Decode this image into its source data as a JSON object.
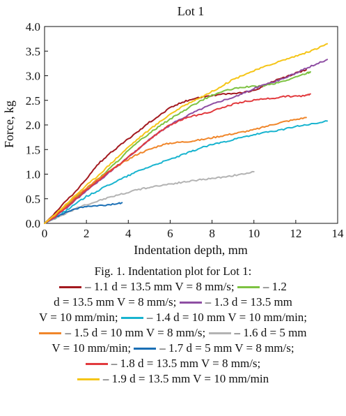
{
  "chart_data": {
    "type": "line",
    "title": "Lot 1",
    "xlabel": "Indentation depth, mm",
    "ylabel": "Force, kg",
    "xlim": [
      0,
      14
    ],
    "ylim": [
      0,
      4.0
    ],
    "x_ticks": [
      "0",
      "2",
      "4",
      "6",
      "8",
      "10",
      "12",
      "14"
    ],
    "y_ticks": [
      "0.0",
      "0.5",
      "1.0",
      "1.5",
      "2.0",
      "2.5",
      "3.0",
      "3.5",
      "4.0"
    ],
    "grid": false,
    "series": [
      {
        "name": "1.1",
        "color": "#a3191f",
        "points": [
          [
            0,
            0
          ],
          [
            0.5,
            0.2
          ],
          [
            1,
            0.45
          ],
          [
            1.5,
            0.65
          ],
          [
            2,
            0.9
          ],
          [
            2.5,
            1.18
          ],
          [
            3,
            1.38
          ],
          [
            3.5,
            1.55
          ],
          [
            4,
            1.72
          ],
          [
            4.5,
            1.88
          ],
          [
            5,
            2.05
          ],
          [
            5.5,
            2.2
          ],
          [
            6,
            2.35
          ],
          [
            6.5,
            2.45
          ],
          [
            7,
            2.52
          ],
          [
            7.5,
            2.57
          ],
          [
            8,
            2.6
          ],
          [
            8.5,
            2.62
          ],
          [
            9,
            2.64
          ],
          [
            9.5,
            2.66
          ],
          [
            10,
            2.7
          ],
          [
            10.5,
            2.8
          ],
          [
            11,
            2.9
          ],
          [
            11.5,
            2.97
          ],
          [
            12,
            3.05
          ],
          [
            12.5,
            3.12
          ]
        ]
      },
      {
        "name": "1.2",
        "color": "#7dc242",
        "points": [
          [
            0,
            0
          ],
          [
            0.5,
            0.15
          ],
          [
            1,
            0.35
          ],
          [
            1.5,
            0.52
          ],
          [
            2,
            0.7
          ],
          [
            2.5,
            0.88
          ],
          [
            3,
            1.07
          ],
          [
            3.5,
            1.27
          ],
          [
            4,
            1.48
          ],
          [
            4.5,
            1.66
          ],
          [
            5,
            1.83
          ],
          [
            5.5,
            1.98
          ],
          [
            6,
            2.12
          ],
          [
            6.5,
            2.25
          ],
          [
            7,
            2.38
          ],
          [
            7.5,
            2.5
          ],
          [
            8,
            2.6
          ],
          [
            8.5,
            2.68
          ],
          [
            9,
            2.73
          ],
          [
            9.5,
            2.77
          ],
          [
            10,
            2.78
          ],
          [
            10.5,
            2.8
          ],
          [
            11,
            2.84
          ],
          [
            11.5,
            2.9
          ],
          [
            12,
            2.97
          ],
          [
            12.5,
            3.05
          ],
          [
            12.7,
            3.08
          ]
        ]
      },
      {
        "name": "1.3",
        "color": "#8e4ea3",
        "points": [
          [
            0,
            0
          ],
          [
            0.5,
            0.12
          ],
          [
            1,
            0.3
          ],
          [
            1.5,
            0.48
          ],
          [
            2,
            0.66
          ],
          [
            2.5,
            0.83
          ],
          [
            3,
            1.0
          ],
          [
            3.5,
            1.17
          ],
          [
            4,
            1.35
          ],
          [
            4.5,
            1.52
          ],
          [
            5,
            1.7
          ],
          [
            5.5,
            1.86
          ],
          [
            6,
            2.0
          ],
          [
            6.5,
            2.12
          ],
          [
            7,
            2.23
          ],
          [
            7.5,
            2.33
          ],
          [
            8,
            2.42
          ],
          [
            8.5,
            2.5
          ],
          [
            9,
            2.56
          ],
          [
            9.5,
            2.64
          ],
          [
            10,
            2.74
          ],
          [
            10.5,
            2.82
          ],
          [
            11,
            2.88
          ],
          [
            11.5,
            2.96
          ],
          [
            12,
            3.05
          ],
          [
            12.5,
            3.15
          ],
          [
            13,
            3.24
          ],
          [
            13.5,
            3.33
          ]
        ]
      },
      {
        "name": "1.4",
        "color": "#19b4cf",
        "points": [
          [
            0,
            0
          ],
          [
            0.5,
            0.1
          ],
          [
            1,
            0.25
          ],
          [
            1.5,
            0.4
          ],
          [
            2,
            0.55
          ],
          [
            2.5,
            0.65
          ],
          [
            3,
            0.77
          ],
          [
            3.5,
            0.87
          ],
          [
            4,
            0.97
          ],
          [
            4.5,
            1.07
          ],
          [
            5,
            1.15
          ],
          [
            5.5,
            1.23
          ],
          [
            6,
            1.3
          ],
          [
            6.5,
            1.38
          ],
          [
            7,
            1.46
          ],
          [
            7.5,
            1.54
          ],
          [
            8,
            1.6
          ],
          [
            8.5,
            1.65
          ],
          [
            9,
            1.7
          ],
          [
            9.5,
            1.75
          ],
          [
            10,
            1.8
          ],
          [
            10.5,
            1.84
          ],
          [
            11,
            1.88
          ],
          [
            11.5,
            1.92
          ],
          [
            12,
            1.97
          ],
          [
            12.5,
            2.0
          ],
          [
            13,
            2.03
          ],
          [
            13.5,
            2.08
          ]
        ]
      },
      {
        "name": "1.5",
        "color": "#f0862a",
        "points": [
          [
            0,
            0
          ],
          [
            0.5,
            0.15
          ],
          [
            1,
            0.35
          ],
          [
            1.5,
            0.55
          ],
          [
            2,
            0.72
          ],
          [
            2.5,
            0.88
          ],
          [
            3,
            1.03
          ],
          [
            3.5,
            1.17
          ],
          [
            4,
            1.3
          ],
          [
            4.5,
            1.42
          ],
          [
            5,
            1.5
          ],
          [
            5.5,
            1.58
          ],
          [
            6,
            1.63
          ],
          [
            6.5,
            1.65
          ],
          [
            7,
            1.67
          ],
          [
            7.5,
            1.7
          ],
          [
            8,
            1.74
          ],
          [
            8.5,
            1.78
          ],
          [
            9,
            1.82
          ],
          [
            9.5,
            1.86
          ],
          [
            10,
            1.9
          ],
          [
            10.5,
            1.96
          ],
          [
            11,
            2.02
          ],
          [
            11.5,
            2.07
          ],
          [
            12,
            2.11
          ],
          [
            12.5,
            2.15
          ]
        ]
      },
      {
        "name": "1.6",
        "color": "#b3b3b3",
        "points": [
          [
            0,
            0
          ],
          [
            0.5,
            0.1
          ],
          [
            1,
            0.2
          ],
          [
            1.5,
            0.3
          ],
          [
            2,
            0.38
          ],
          [
            2.5,
            0.45
          ],
          [
            3,
            0.52
          ],
          [
            3.5,
            0.58
          ],
          [
            4,
            0.63
          ],
          [
            4.5,
            0.69
          ],
          [
            5,
            0.73
          ],
          [
            5.5,
            0.77
          ],
          [
            6,
            0.8
          ],
          [
            6.5,
            0.83
          ],
          [
            7,
            0.86
          ],
          [
            7.5,
            0.89
          ],
          [
            8,
            0.91
          ],
          [
            8.5,
            0.94
          ],
          [
            9,
            0.97
          ],
          [
            9.5,
            1.0
          ],
          [
            10,
            1.05
          ]
        ]
      },
      {
        "name": "1.7",
        "color": "#1a6fb5",
        "points": [
          [
            0,
            0
          ],
          [
            0.5,
            0.12
          ],
          [
            1,
            0.22
          ],
          [
            1.5,
            0.3
          ],
          [
            2,
            0.34
          ],
          [
            2.5,
            0.35
          ],
          [
            3,
            0.37
          ],
          [
            3.5,
            0.4
          ],
          [
            3.7,
            0.42
          ]
        ]
      },
      {
        "name": "1.8",
        "color": "#e23b3f",
        "points": [
          [
            0,
            0
          ],
          [
            0.5,
            0.13
          ],
          [
            1,
            0.32
          ],
          [
            1.5,
            0.5
          ],
          [
            2,
            0.68
          ],
          [
            2.5,
            0.85
          ],
          [
            3,
            1.02
          ],
          [
            3.5,
            1.18
          ],
          [
            4,
            1.35
          ],
          [
            4.5,
            1.52
          ],
          [
            5,
            1.7
          ],
          [
            5.5,
            1.86
          ],
          [
            6,
            2.0
          ],
          [
            6.5,
            2.1
          ],
          [
            7,
            2.17
          ],
          [
            7.5,
            2.22
          ],
          [
            8,
            2.28
          ],
          [
            8.5,
            2.35
          ],
          [
            9,
            2.42
          ],
          [
            9.5,
            2.47
          ],
          [
            10,
            2.5
          ],
          [
            10.5,
            2.53
          ],
          [
            11,
            2.55
          ],
          [
            11.5,
            2.58
          ],
          [
            12,
            2.58
          ],
          [
            12.5,
            2.6
          ],
          [
            12.7,
            2.63
          ]
        ]
      },
      {
        "name": "1.9",
        "color": "#f5c518",
        "points": [
          [
            0,
            0
          ],
          [
            0.5,
            0.18
          ],
          [
            1,
            0.38
          ],
          [
            1.5,
            0.58
          ],
          [
            2,
            0.77
          ],
          [
            2.5,
            0.95
          ],
          [
            3,
            1.15
          ],
          [
            3.5,
            1.35
          ],
          [
            4,
            1.55
          ],
          [
            4.5,
            1.73
          ],
          [
            5,
            1.9
          ],
          [
            5.5,
            2.06
          ],
          [
            6,
            2.22
          ],
          [
            6.5,
            2.35
          ],
          [
            7,
            2.47
          ],
          [
            7.5,
            2.57
          ],
          [
            8,
            2.68
          ],
          [
            8.5,
            2.8
          ],
          [
            9,
            2.92
          ],
          [
            9.5,
            3.02
          ],
          [
            10,
            3.1
          ],
          [
            10.5,
            3.18
          ],
          [
            11,
            3.26
          ],
          [
            11.5,
            3.33
          ],
          [
            12,
            3.4
          ],
          [
            12.5,
            3.47
          ],
          [
            13,
            3.55
          ],
          [
            13.5,
            3.65
          ]
        ]
      }
    ]
  },
  "caption": {
    "line1": "Fig. 1. Indentation plot for Lot 1:",
    "line2": "– 1.1 d = 13.5 mm V = 8 mm/s;",
    "line2b": "– 1.2",
    "line3": "d = 13.5 mm V = 8 mm/s;",
    "line3b": "– 1.3 d = 13.5 mm",
    "line4": "V = 10 mm/min;",
    "line4b": "– 1.4 d = 10 mm V = 10 mm/min;",
    "line5": "– 1.5 d = 10 mm V = 8 mm/s;",
    "line5b": "– 1.6 d = 5 mm",
    "line6": "V = 10 mm/min;",
    "line6b": "– 1.7 d = 5 mm V = 8 mm/s;",
    "line7": "– 1.8 d = 13.5 mm V = 8 mm/s;",
    "line8": "– 1.9 d = 13.5 mm V = 10 mm/min"
  }
}
